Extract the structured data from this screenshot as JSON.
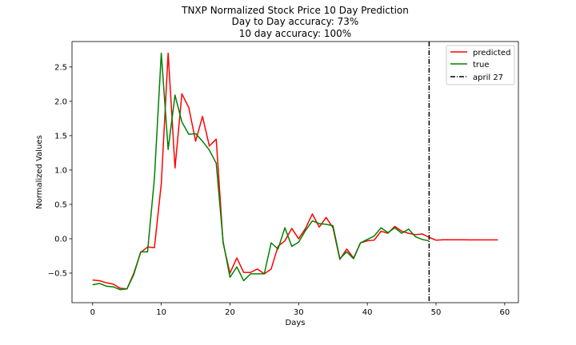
{
  "chart_data": {
    "type": "line",
    "title_lines": [
      "TNXP Normalized Stock Price 10 Day Prediction",
      "Day to Day accuracy: 73%",
      "10 day accuracy: 100%"
    ],
    "xlabel": "Days",
    "ylabel": "Normalized Values",
    "xlim": [
      -3,
      62
    ],
    "ylim": [
      -0.93,
      2.87
    ],
    "xticks": [
      0,
      10,
      20,
      30,
      40,
      50,
      60
    ],
    "yticks": [
      -0.5,
      0.0,
      0.5,
      1.0,
      1.5,
      2.0,
      2.5
    ],
    "ytick_labels": [
      "−0.5",
      "0.0",
      "0.5",
      "1.0",
      "1.5",
      "2.0",
      "2.5"
    ],
    "grid": false,
    "legend_position": "top-right",
    "series": [
      {
        "name": "predicted",
        "color": "#ff0000",
        "x": [
          0,
          1,
          2,
          3,
          4,
          5,
          6,
          7,
          8,
          9,
          10,
          11,
          12,
          13,
          14,
          15,
          16,
          17,
          18,
          19,
          20,
          21,
          22,
          23,
          24,
          25,
          26,
          27,
          28,
          29,
          30,
          31,
          32,
          33,
          34,
          35,
          36,
          37,
          38,
          39,
          40,
          41,
          42,
          43,
          44,
          45,
          46,
          47,
          48,
          49,
          50,
          51,
          52,
          53,
          54,
          55,
          56,
          57,
          58,
          59
        ],
        "values": [
          -0.6,
          -0.61,
          -0.64,
          -0.66,
          -0.72,
          -0.73,
          -0.5,
          -0.2,
          -0.12,
          -0.13,
          0.8,
          2.7,
          1.03,
          2.11,
          1.91,
          1.42,
          1.78,
          1.35,
          1.45,
          -0.06,
          -0.5,
          -0.28,
          -0.49,
          -0.49,
          -0.44,
          -0.51,
          -0.44,
          -0.11,
          -0.03,
          0.15,
          0.0,
          0.15,
          0.36,
          0.17,
          0.31,
          0.16,
          -0.3,
          -0.15,
          -0.28,
          -0.06,
          -0.03,
          -0.02,
          0.11,
          0.08,
          0.18,
          0.11,
          0.08,
          0.06,
          0.07,
          0.02,
          -0.02,
          -0.015,
          -0.015,
          -0.015,
          -0.015,
          -0.017,
          -0.017,
          -0.017,
          -0.017,
          -0.017
        ]
      },
      {
        "name": "true",
        "color": "#008000",
        "x": [
          0,
          1,
          2,
          3,
          4,
          5,
          6,
          7,
          8,
          9,
          10,
          11,
          12,
          13,
          14,
          15,
          16,
          17,
          18,
          19,
          20,
          21,
          22,
          23,
          24,
          25,
          26,
          27,
          28,
          29,
          30,
          31,
          32,
          33,
          34,
          35,
          36,
          37,
          38,
          39,
          40,
          41,
          42,
          43,
          44,
          45,
          46,
          47,
          48,
          49
        ],
        "values": [
          -0.67,
          -0.65,
          -0.69,
          -0.7,
          -0.74,
          -0.73,
          -0.52,
          -0.19,
          -0.19,
          0.88,
          2.7,
          1.3,
          2.09,
          1.7,
          1.52,
          1.53,
          1.42,
          1.29,
          1.1,
          -0.04,
          -0.56,
          -0.41,
          -0.61,
          -0.51,
          -0.51,
          -0.51,
          -0.06,
          -0.15,
          0.16,
          -0.11,
          -0.05,
          0.12,
          0.26,
          0.22,
          0.21,
          0.19,
          -0.29,
          -0.19,
          -0.29,
          -0.06,
          -0.01,
          0.04,
          0.16,
          0.09,
          0.16,
          0.08,
          0.14,
          0.03,
          -0.01,
          -0.03
        ]
      }
    ],
    "vline": {
      "name": "april 27",
      "x": 49,
      "color": "#000000"
    }
  }
}
